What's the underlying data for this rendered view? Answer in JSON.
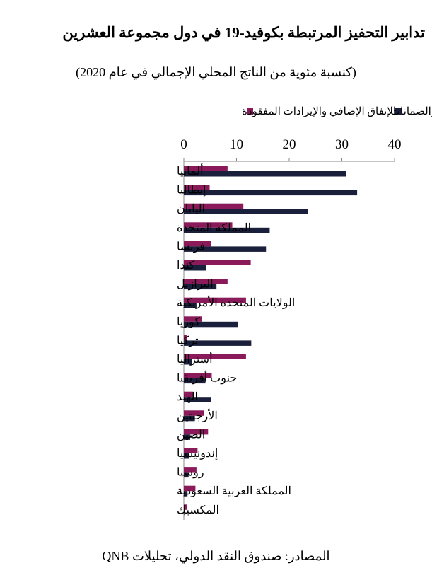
{
  "title": "تدابير التحفيز المرتبطة بكوفيد-19 في دول مجموعة العشرين",
  "subtitle": "(كنسبة مئوية من الناتج المحلي الإجمالي في عام 2020)",
  "source": "المصادر: صندوق النقد الدولي، تحليلات QNB",
  "chart_data": {
    "type": "bar",
    "orientation": "horizontal",
    "categories": [
      "ألمانيا",
      "إيطاليا",
      "اليابان",
      "المملكة المتحدة",
      "فرنسا",
      "كندا",
      "البرازيل",
      "الولايات المتحدة الأمريكية",
      "كوريا",
      "تركيا",
      "أستراليا",
      "جنوب أفريقيا",
      "الهند",
      "الأرجنتين",
      "الصين",
      "إندونيسيا",
      "روسيا",
      "المملكة العربية السعودية",
      "المكسيك"
    ],
    "series": [
      {
        "name": "الإنفاق الإضافي والإيرادات المفقودة",
        "color": "#8b1a5a",
        "values": [
          8.3,
          4.9,
          11.3,
          9.2,
          5.2,
          12.7,
          8.3,
          11.8,
          3.4,
          0.6,
          11.8,
          5.3,
          1.7,
          3.8,
          4.6,
          2.6,
          2.4,
          2.2,
          0.6
        ]
      },
      {
        "name": "الأسهم والقروض والضمانات",
        "color": "#1a1f3c",
        "values": [
          30.8,
          32.9,
          23.6,
          16.3,
          15.6,
          4.2,
          6.2,
          2.4,
          10.2,
          12.8,
          1.6,
          4.1,
          5.1,
          2.1,
          1.2,
          1.0,
          0.9,
          0.7,
          0.1
        ]
      }
    ],
    "xlim": [
      0,
      40
    ],
    "xticks": [
      0,
      10,
      20,
      30,
      40
    ],
    "grid": false,
    "legend_position": "top"
  }
}
